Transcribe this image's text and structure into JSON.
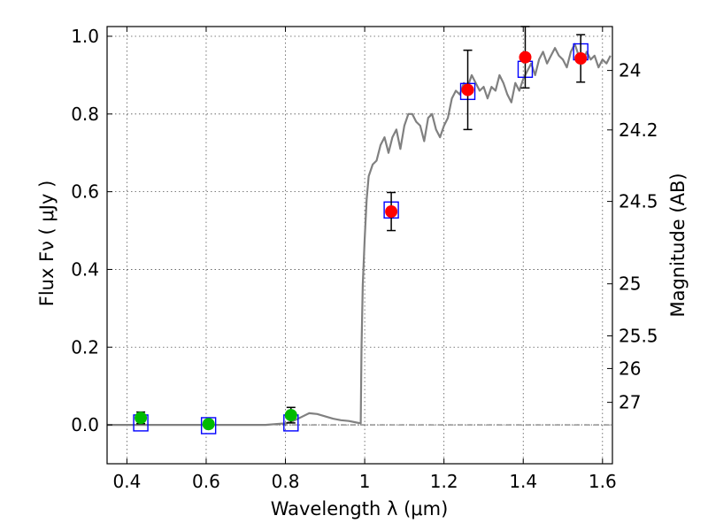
{
  "chart_data": {
    "type": "scatter",
    "xlabel": "Wavelength  λ (μm)",
    "ylabel": "Flux  Fν  ( μJy )",
    "y2label": "Magnitude (AB)",
    "xlim": [
      0.35,
      1.625
    ],
    "ylim": [
      -0.1,
      1.025
    ],
    "grid": true,
    "x_ticks": [
      0.4,
      0.6,
      0.8,
      1.0,
      1.2,
      1.4,
      1.6
    ],
    "x_tick_labels": [
      "0.4",
      "0.6",
      "0.8",
      "1",
      "1.2",
      "1.4",
      "1.6"
    ],
    "y_ticks": [
      0.0,
      0.2,
      0.4,
      0.6,
      0.8,
      1.0
    ],
    "y_tick_labels": [
      "0.0",
      "0.2",
      "0.4",
      "0.6",
      "0.8",
      "1.0"
    ],
    "magnitude_ticks": [
      {
        "label": "24",
        "flux": 0.912
      },
      {
        "label": "24.2",
        "flux": 0.759
      },
      {
        "label": "24.5",
        "flux": 0.575
      },
      {
        "label": "25",
        "flux": 0.363
      },
      {
        "label": "25.5",
        "flux": 0.229
      },
      {
        "label": "26",
        "flux": 0.145
      },
      {
        "label": "27",
        "flux": 0.058
      }
    ],
    "spectrum": {
      "color": "#808080",
      "x": [
        0.35,
        0.4,
        0.5,
        0.6,
        0.7,
        0.75,
        0.8,
        0.82,
        0.84,
        0.86,
        0.88,
        0.9,
        0.92,
        0.94,
        0.96,
        0.98,
        0.99,
        0.992,
        0.995,
        1.0,
        1.005,
        1.01,
        1.02,
        1.03,
        1.04,
        1.05,
        1.06,
        1.07,
        1.08,
        1.09,
        1.1,
        1.11,
        1.12,
        1.13,
        1.14,
        1.15,
        1.16,
        1.17,
        1.18,
        1.19,
        1.2,
        1.21,
        1.22,
        1.23,
        1.24,
        1.25,
        1.26,
        1.27,
        1.28,
        1.29,
        1.3,
        1.31,
        1.32,
        1.33,
        1.34,
        1.35,
        1.36,
        1.37,
        1.38,
        1.39,
        1.4,
        1.41,
        1.42,
        1.43,
        1.44,
        1.45,
        1.46,
        1.47,
        1.48,
        1.49,
        1.5,
        1.51,
        1.52,
        1.53,
        1.54,
        1.55,
        1.56,
        1.57,
        1.58,
        1.59,
        1.6,
        1.61,
        1.62
      ],
      "y": [
        0.0,
        0.0,
        0.0,
        0.0,
        0.0,
        0.0,
        0.004,
        0.01,
        0.02,
        0.03,
        0.028,
        0.022,
        0.016,
        0.012,
        0.01,
        0.006,
        0.004,
        0.2,
        0.36,
        0.48,
        0.58,
        0.64,
        0.67,
        0.68,
        0.72,
        0.74,
        0.7,
        0.74,
        0.76,
        0.71,
        0.77,
        0.8,
        0.8,
        0.78,
        0.77,
        0.73,
        0.79,
        0.8,
        0.76,
        0.74,
        0.77,
        0.79,
        0.84,
        0.86,
        0.85,
        0.88,
        0.87,
        0.9,
        0.88,
        0.86,
        0.87,
        0.84,
        0.87,
        0.86,
        0.9,
        0.88,
        0.85,
        0.83,
        0.88,
        0.86,
        0.89,
        0.91,
        0.93,
        0.9,
        0.94,
        0.96,
        0.93,
        0.95,
        0.97,
        0.95,
        0.94,
        0.92,
        0.96,
        0.98,
        0.95,
        0.93,
        0.96,
        0.94,
        0.95,
        0.92,
        0.94,
        0.93,
        0.95
      ]
    },
    "model_points": {
      "marker": "open-square",
      "color": "#0000ff",
      "x": [
        0.435,
        0.606,
        0.814,
        1.067,
        1.26,
        1.405,
        1.545
      ],
      "y": [
        0.005,
        -0.002,
        0.005,
        0.553,
        0.858,
        0.915,
        0.96
      ]
    },
    "observed_points": [
      {
        "x": 0.435,
        "y": 0.018,
        "err": 0.015,
        "color": "#00bb00"
      },
      {
        "x": 0.606,
        "y": 0.002,
        "err": 0.01,
        "color": "#00bb00"
      },
      {
        "x": 0.814,
        "y": 0.025,
        "err": 0.02,
        "color": "#00bb00"
      },
      {
        "x": 1.067,
        "y": 0.549,
        "err": 0.049,
        "color": "#ff0000"
      },
      {
        "x": 1.26,
        "y": 0.862,
        "err": 0.102,
        "color": "#ff0000"
      },
      {
        "x": 1.405,
        "y": 0.946,
        "err": 0.079,
        "color": "#ff0000"
      },
      {
        "x": 1.545,
        "y": 0.943,
        "err": 0.061,
        "color": "#ff0000"
      }
    ],
    "zero_line": true
  }
}
